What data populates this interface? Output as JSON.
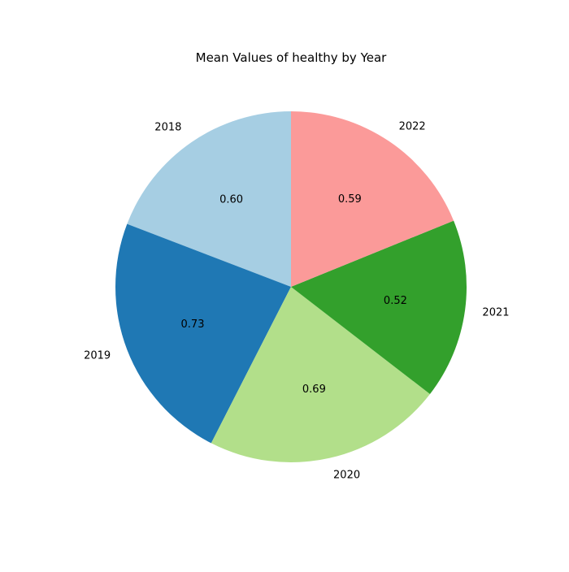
{
  "chart_data": {
    "type": "pie",
    "title": "Mean Values of healthy by Year",
    "categories": [
      "2018",
      "2019",
      "2020",
      "2021",
      "2022"
    ],
    "values": [
      0.6,
      0.73,
      0.69,
      0.52,
      0.59
    ],
    "value_labels": [
      "0.60",
      "0.73",
      "0.69",
      "0.52",
      "0.59"
    ],
    "colors": [
      "#a6cee3",
      "#1f78b4",
      "#b2df8a",
      "#33a02c",
      "#fb9a99"
    ],
    "start_angle": "top",
    "direction": "counterclockwise",
    "legend": "none"
  }
}
